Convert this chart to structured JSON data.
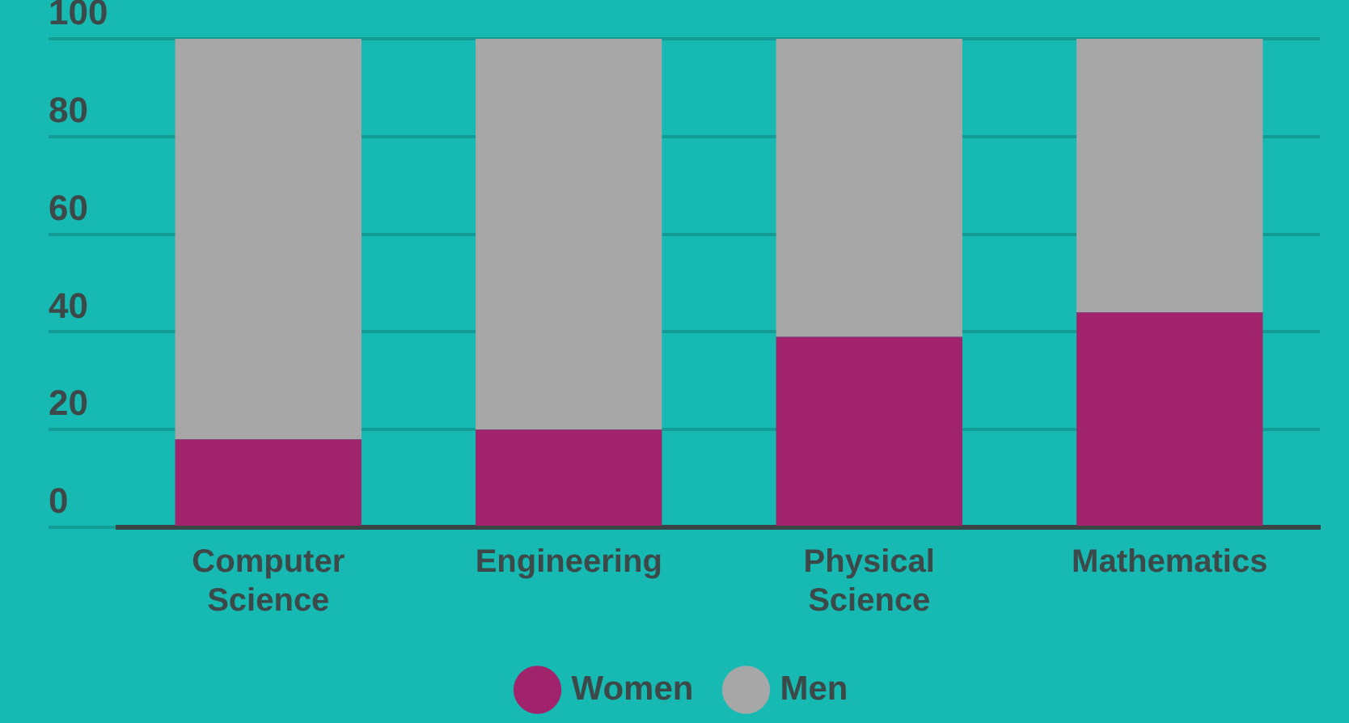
{
  "chart_data": {
    "type": "bar",
    "stacked": true,
    "categories": [
      "Computer Science",
      "Engineering",
      "Physical Science",
      "Mathematics"
    ],
    "series": [
      {
        "name": "Women",
        "color": "#a0236b",
        "values": [
          18,
          20,
          39,
          44
        ]
      },
      {
        "name": "Men",
        "color": "#a7a7a8",
        "values": [
          82,
          80,
          61,
          56
        ]
      }
    ],
    "ylim": [
      0,
      100
    ],
    "yticks": [
      0,
      20,
      40,
      60,
      80,
      100
    ],
    "grid": "y",
    "legend": "bottom"
  }
}
